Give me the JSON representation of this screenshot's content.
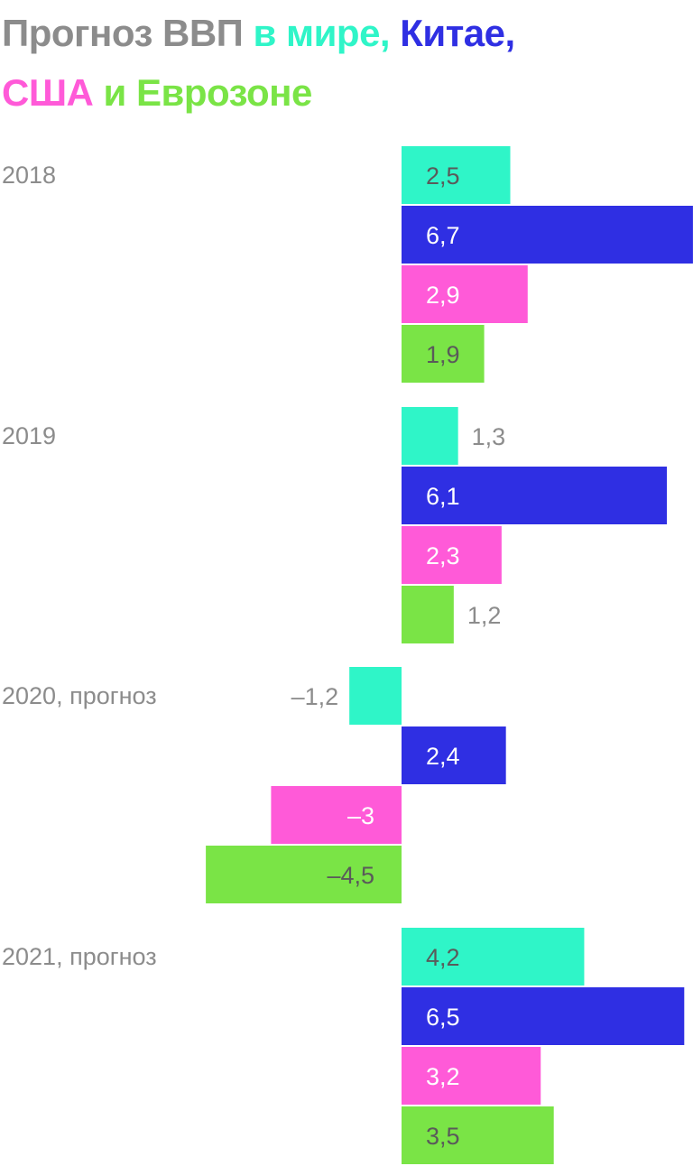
{
  "title": {
    "part1": "Прогноз ВВП ",
    "part2": "в мире, ",
    "part3": "Китае,",
    "part4": "США ",
    "part5": "и Еврозоне"
  },
  "colors": {
    "title_gray": "#8c8c8c",
    "world": "#2ff5c8",
    "china": "#2f2fe3",
    "usa": "#ff5ad8",
    "eurozone": "#7ae446",
    "label_dark": "#5a5a5a",
    "label_white": "#ffffff",
    "label_outside": "#8c8c8c"
  },
  "chart_data": {
    "type": "bar",
    "orientation": "horizontal",
    "title": "Прогноз ВВП в мире, Китае, США и Еврозоне",
    "categories": [
      "2018",
      "2019",
      "2020, прогноз",
      "2021, прогноз"
    ],
    "series": [
      {
        "name": "в мире",
        "color": "#2ff5c8",
        "values": [
          2.5,
          1.3,
          -1.2,
          4.2
        ],
        "labels": [
          "2,5",
          "1,3",
          "–1,2",
          "4,2"
        ]
      },
      {
        "name": "Китае",
        "color": "#2f2fe3",
        "values": [
          6.7,
          6.1,
          2.4,
          6.5
        ],
        "labels": [
          "6,7",
          "6,1",
          "2,4",
          "6,5"
        ]
      },
      {
        "name": "США",
        "color": "#ff5ad8",
        "values": [
          2.9,
          2.3,
          -3,
          3.2
        ],
        "labels": [
          "2,9",
          "2,3",
          "–3",
          "3,2"
        ]
      },
      {
        "name": "Еврозоне",
        "color": "#7ae446",
        "values": [
          1.9,
          1.2,
          -4.5,
          3.5
        ],
        "labels": [
          "1,9",
          "1,2",
          "–4,5",
          "3,5"
        ]
      }
    ],
    "xlim": [
      -4.5,
      6.7
    ],
    "grid": false,
    "legend": "in title"
  }
}
